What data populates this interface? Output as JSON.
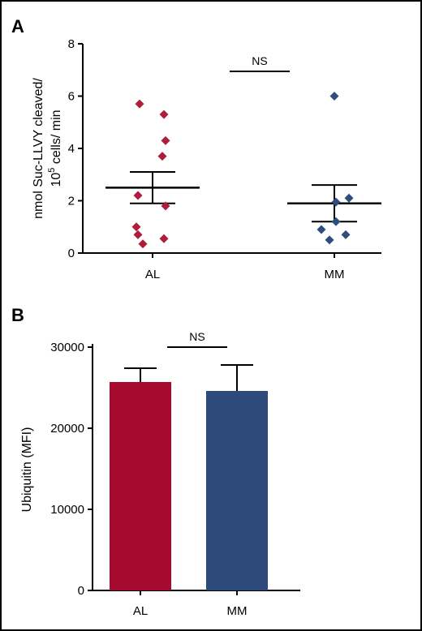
{
  "chart_data": [
    {
      "panel": "A",
      "type": "scatter",
      "ylabel": "nmol Suc-LLVY cleaved/ 10^5 cells/ min",
      "ylabel_line1": "nmol Suc-LLVY cleaved/",
      "ylabel_line2_base": "10",
      "ylabel_line2_sup": "5",
      "ylabel_line2_rest": " cells/ min",
      "ylim": [
        0,
        8
      ],
      "yticks": [
        "0",
        "2",
        "4",
        "6",
        "8"
      ],
      "categories": [
        "AL",
        "MM"
      ],
      "annotation": "NS",
      "colors": {
        "AL": "#b01c3c",
        "MM": "#2e4d7e"
      },
      "series": [
        {
          "category": "AL",
          "points": [
            5.7,
            5.3,
            4.3,
            3.7,
            2.2,
            1.8,
            1.0,
            0.7,
            0.55,
            0.35
          ],
          "mean": 2.5,
          "sem_low": 1.9,
          "sem_high": 3.1
        },
        {
          "category": "MM",
          "points": [
            6.0,
            2.1,
            1.95,
            1.2,
            0.9,
            0.7,
            0.5
          ],
          "mean": 1.9,
          "sem_low": 1.2,
          "sem_high": 2.6
        }
      ]
    },
    {
      "panel": "B",
      "type": "bar",
      "ylabel": "Ubiquitin (MFI)",
      "ylim": [
        0,
        30000
      ],
      "yticks": [
        "0",
        "10000",
        "20000",
        "30000"
      ],
      "categories": [
        "AL",
        "MM"
      ],
      "annotation": "NS",
      "colors": {
        "AL": "#a60a2e",
        "MM": "#2e4a7a"
      },
      "values": [
        25700,
        24600
      ],
      "error_upper": [
        27400,
        27800
      ]
    }
  ]
}
